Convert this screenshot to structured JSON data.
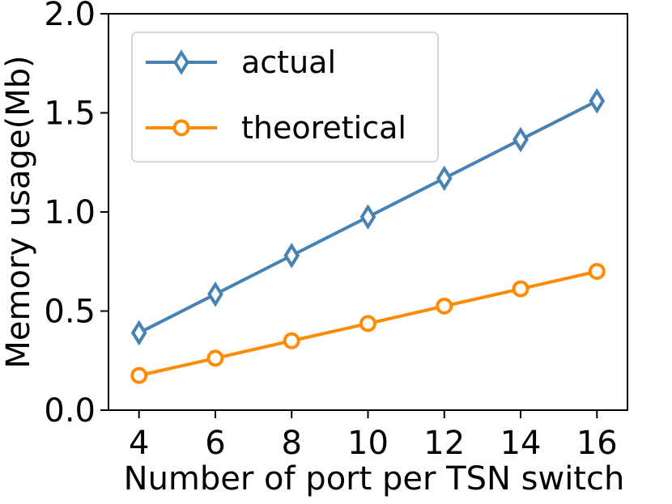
{
  "chart_data": {
    "type": "line",
    "x": [
      4,
      6,
      8,
      10,
      12,
      14,
      16
    ],
    "xticks": [
      "4",
      "6",
      "8",
      "10",
      "12",
      "14",
      "16"
    ],
    "yticks": [
      "0.0",
      "0.5",
      "1.0",
      "1.5",
      "2.0"
    ],
    "ytick_values": [
      0.0,
      0.5,
      1.0,
      1.5,
      2.0
    ],
    "xlim": [
      3.2,
      16.8
    ],
    "ylim": [
      0.0,
      2.0
    ],
    "xlabel": "Number of port per TSN switch",
    "ylabel": "Memory usage(Mb)",
    "grid": false,
    "legend_position": "top-left",
    "series": [
      {
        "name": "actual",
        "color": "#4682b4",
        "marker": "diamond",
        "values": [
          0.39,
          0.585,
          0.78,
          0.975,
          1.17,
          1.365,
          1.56
        ]
      },
      {
        "name": "theoretical",
        "color": "#ff8c00",
        "marker": "circle",
        "values": [
          0.175,
          0.262,
          0.35,
          0.437,
          0.525,
          0.612,
          0.7
        ]
      }
    ]
  }
}
